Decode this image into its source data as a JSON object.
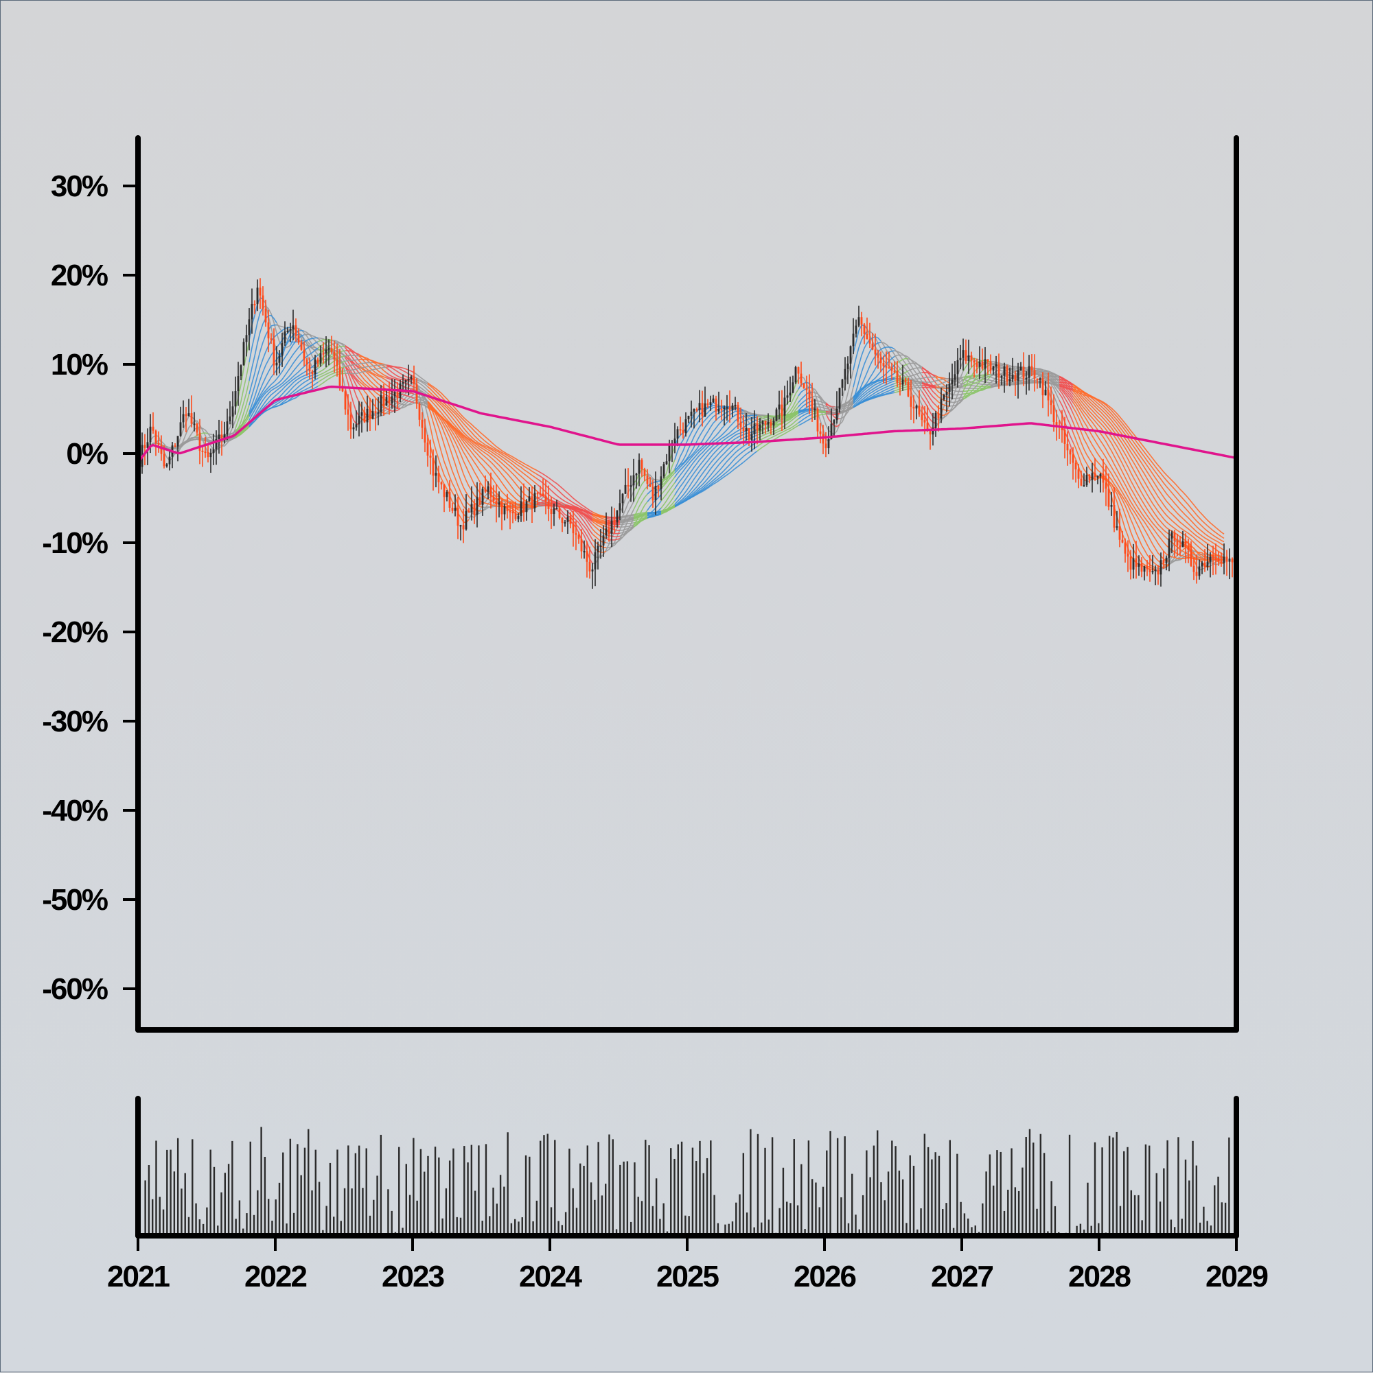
{
  "chart_data": {
    "type": "candlestick",
    "title": "",
    "xlabel": "",
    "ylabel": "",
    "y_axis": {
      "format": "percent",
      "ylim": [
        -0.65,
        0.35
      ],
      "ticks": [
        {
          "value": 0.3,
          "label": "30%"
        },
        {
          "value": 0.2,
          "label": "20%"
        },
        {
          "value": 0.1,
          "label": "10%"
        },
        {
          "value": 0.0,
          "label": "0%"
        },
        {
          "value": -0.1,
          "label": "-10%"
        },
        {
          "value": -0.2,
          "label": "-20%"
        },
        {
          "value": -0.3,
          "label": "-30%"
        },
        {
          "value": -0.4,
          "label": "-40%"
        },
        {
          "value": -0.5,
          "label": "-50%"
        },
        {
          "value": -0.6,
          "label": "-60%"
        }
      ]
    },
    "x_axis": {
      "xlim": [
        2021,
        2029
      ],
      "ticks": [
        {
          "value": 2021,
          "label": "2021"
        },
        {
          "value": 2022,
          "label": "2022"
        },
        {
          "value": 2023,
          "label": "2023"
        },
        {
          "value": 2024,
          "label": "2024"
        },
        {
          "value": 2025,
          "label": "2025"
        },
        {
          "value": 2026,
          "label": "2026"
        },
        {
          "value": 2027,
          "label": "2027"
        },
        {
          "value": 2028,
          "label": "2028"
        },
        {
          "value": 2029,
          "label": "2029"
        }
      ]
    },
    "price_path": [
      [
        2021.0,
        -0.01
      ],
      [
        2021.1,
        0.03
      ],
      [
        2021.2,
        -0.02
      ],
      [
        2021.35,
        0.05
      ],
      [
        2021.5,
        -0.01
      ],
      [
        2021.65,
        0.03
      ],
      [
        2021.87,
        0.19
      ],
      [
        2022.0,
        0.1
      ],
      [
        2022.12,
        0.15
      ],
      [
        2022.25,
        0.09
      ],
      [
        2022.4,
        0.12
      ],
      [
        2022.55,
        0.03
      ],
      [
        2022.8,
        0.06
      ],
      [
        2023.0,
        0.08
      ],
      [
        2023.15,
        -0.02
      ],
      [
        2023.35,
        -0.08
      ],
      [
        2023.55,
        -0.04
      ],
      [
        2023.7,
        -0.07
      ],
      [
        2023.9,
        -0.05
      ],
      [
        2024.15,
        -0.08
      ],
      [
        2024.3,
        -0.13
      ],
      [
        2024.5,
        -0.06
      ],
      [
        2024.65,
        -0.01
      ],
      [
        2024.75,
        -0.05
      ],
      [
        2024.9,
        0.02
      ],
      [
        2025.1,
        0.05
      ],
      [
        2025.3,
        0.06
      ],
      [
        2025.45,
        0.02
      ],
      [
        2025.7,
        0.05
      ],
      [
        2025.8,
        0.1
      ],
      [
        2026.0,
        0.01
      ],
      [
        2026.1,
        0.06
      ],
      [
        2026.25,
        0.15
      ],
      [
        2026.4,
        0.1
      ],
      [
        2026.6,
        0.07
      ],
      [
        2026.75,
        0.02
      ],
      [
        2026.9,
        0.07
      ],
      [
        2027.0,
        0.11
      ],
      [
        2027.3,
        0.09
      ],
      [
        2027.55,
        0.09
      ],
      [
        2027.7,
        0.03
      ],
      [
        2027.85,
        -0.03
      ],
      [
        2028.0,
        -0.02
      ],
      [
        2028.2,
        -0.12
      ],
      [
        2028.4,
        -0.14
      ],
      [
        2028.55,
        -0.09
      ],
      [
        2028.7,
        -0.13
      ],
      [
        2028.85,
        -0.11
      ],
      [
        2029.0,
        -0.13
      ]
    ],
    "long_average": [
      [
        2021.0,
        -0.01
      ],
      [
        2021.1,
        0.01
      ],
      [
        2021.3,
        0.0
      ],
      [
        2021.5,
        0.01
      ],
      [
        2021.7,
        0.02
      ],
      [
        2022.0,
        0.06
      ],
      [
        2022.4,
        0.075
      ],
      [
        2023.0,
        0.07
      ],
      [
        2023.5,
        0.045
      ],
      [
        2024.0,
        0.03
      ],
      [
        2024.5,
        0.01
      ],
      [
        2025.0,
        0.01
      ],
      [
        2025.5,
        0.013
      ],
      [
        2026.0,
        0.018
      ],
      [
        2026.5,
        0.025
      ],
      [
        2027.0,
        0.028
      ],
      [
        2027.5,
        0.034
      ],
      [
        2028.0,
        0.025
      ],
      [
        2028.5,
        0.01
      ],
      [
        2029.0,
        -0.005
      ]
    ],
    "series": [
      {
        "values": []
      }
    ],
    "colors": {
      "up_candle": "#2b2b2b",
      "down_candle": "#ff4a1a",
      "long_average": "#e0148c",
      "ribbon_neutral": "#9a9a9a",
      "ribbon_bull": "#8cc46a",
      "ribbon_strong_bull": "#3a8fd6",
      "ribbon_bear": "#f05050",
      "ribbon_strong_bear": "#ff6a2a",
      "volume": "#2b2b2b"
    },
    "grid": false,
    "legend": "none"
  }
}
